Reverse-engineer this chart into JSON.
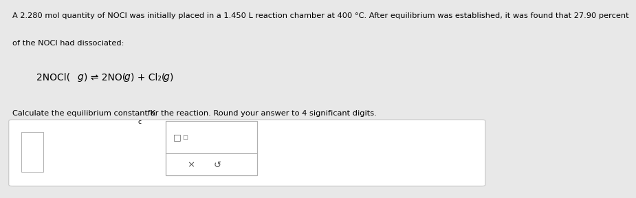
{
  "bg_color": "#e8e8e8",
  "panel_bg": "#ffffff",
  "text_color": "#000000",
  "line1": "A 2.280 mol quantity of NOCl was initially placed in a 1.450 L reaction chamber at 400 °C. After equilibrium was established, it was found that 27.90 percent",
  "line2": "of the NOCl had dissociated:",
  "eq_part1": "2NOCl(",
  "eq_g1": "g",
  "eq_part2": ") ⇌ 2NO(",
  "eq_g2": "g",
  "eq_part3": ") + Cl₂(",
  "eq_g3": "g",
  "eq_part4": ")",
  "instr_part1": "Calculate the equilibrium constant K",
  "instr_sub": "c",
  "instr_part2": " for the reaction. Round your answer to 4 significant digits.",
  "font_size_main": 8.2,
  "font_size_eq": 10.0,
  "font_size_instr": 8.2,
  "box_symbol": "□",
  "x_symbol": "×",
  "undo_symbol": "↺"
}
